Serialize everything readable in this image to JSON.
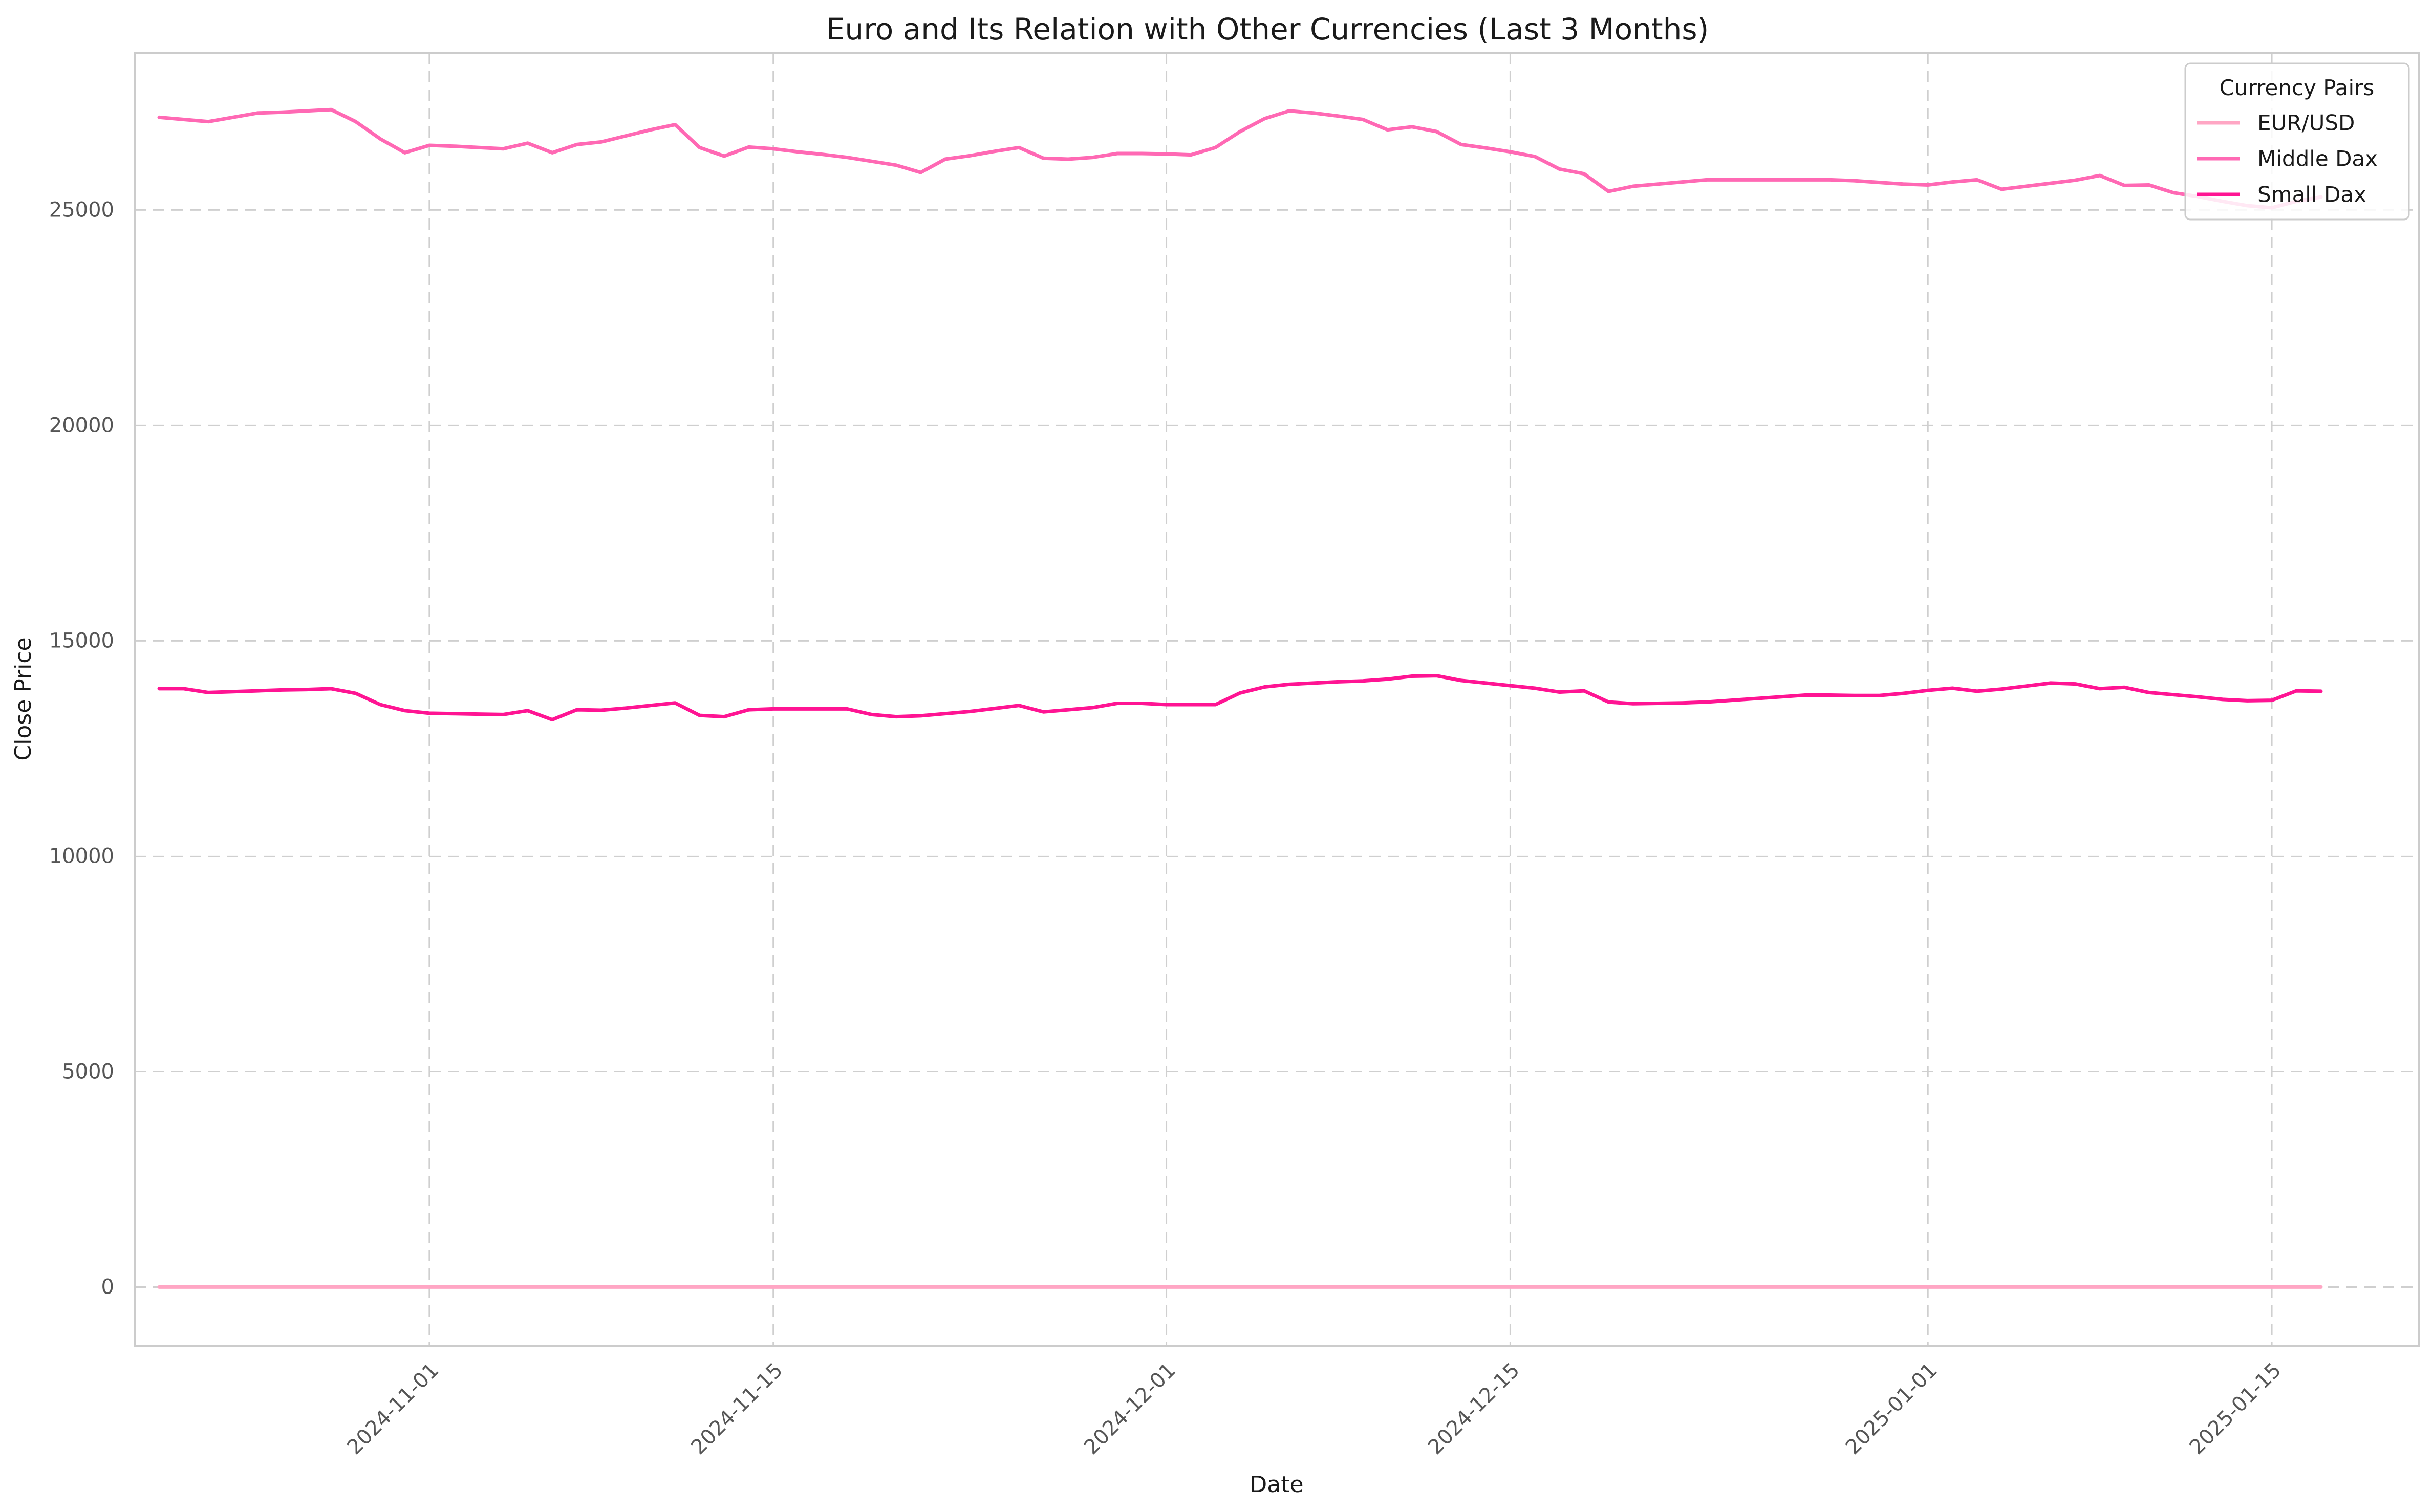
{
  "chart_data": {
    "type": "line",
    "title": "Euro and Its Relation with Other Currencies (Last 3 Months)",
    "xlabel": "Date",
    "ylabel": "Close Price",
    "xlim": [
      "2024-10-20",
      "2025-01-21"
    ],
    "ylim": [
      -1360,
      28650
    ],
    "grid": true,
    "legend": {
      "title": "Currency Pairs",
      "position": "top-right"
    },
    "x_ticks": [
      "2024-11-01",
      "2024-11-15",
      "2024-12-01",
      "2024-12-15",
      "2025-01-01",
      "2025-01-15"
    ],
    "y_ticks": [
      0,
      5000,
      10000,
      15000,
      20000,
      25000
    ],
    "series": [
      {
        "name": "EUR/USD",
        "color": "#ffa6c4",
        "x": [
          "2024-10-21",
          "2025-01-17"
        ],
        "values": [
          1.08,
          1.03
        ]
      },
      {
        "name": "Middle Dax",
        "color": "#ff69b4",
        "x": [
          "2024-10-21",
          "2024-10-22",
          "2024-10-23",
          "2024-10-24",
          "2024-10-25",
          "2024-10-26",
          "2024-10-27",
          "2024-10-28",
          "2024-10-29",
          "2024-10-30",
          "2024-10-31",
          "2024-11-01",
          "2024-11-02",
          "2024-11-03",
          "2024-11-04",
          "2024-11-05",
          "2024-11-06",
          "2024-11-07",
          "2024-11-08",
          "2024-11-09",
          "2024-11-10",
          "2024-11-11",
          "2024-11-12",
          "2024-11-13",
          "2024-11-14",
          "2024-11-15",
          "2024-11-16",
          "2024-11-17",
          "2024-11-18",
          "2024-11-19",
          "2024-11-20",
          "2024-11-21",
          "2024-11-22",
          "2024-11-23",
          "2024-11-24",
          "2024-11-25",
          "2024-11-26",
          "2024-11-27",
          "2024-11-28",
          "2024-11-29",
          "2024-11-30",
          "2024-12-01",
          "2024-12-02",
          "2024-12-03",
          "2024-12-04",
          "2024-12-05",
          "2024-12-06",
          "2024-12-07",
          "2024-12-08",
          "2024-12-09",
          "2024-12-10",
          "2024-12-11",
          "2024-12-12",
          "2024-12-13",
          "2024-12-14",
          "2024-12-15",
          "2024-12-16",
          "2024-12-17",
          "2024-12-18",
          "2024-12-19",
          "2024-12-20",
          "2024-12-21",
          "2024-12-22",
          "2024-12-23",
          "2024-12-24",
          "2024-12-25",
          "2024-12-26",
          "2024-12-27",
          "2024-12-28",
          "2024-12-29",
          "2024-12-30",
          "2024-12-31",
          "2025-01-01",
          "2025-01-02",
          "2025-01-03",
          "2025-01-04",
          "2025-01-05",
          "2025-01-06",
          "2025-01-07",
          "2025-01-08",
          "2025-01-09",
          "2025-01-10",
          "2025-01-11",
          "2025-01-12",
          "2025-01-13",
          "2025-01-14",
          "2025-01-15",
          "2025-01-16",
          "2025-01-17"
        ],
        "values": [
          27150,
          27100,
          27050,
          27150,
          27250,
          27270,
          27300,
          27330,
          27050,
          26650,
          26330,
          26500,
          26480,
          26450,
          26420,
          26550,
          26330,
          26520,
          26580,
          26720,
          26860,
          26980,
          26450,
          26250,
          26460,
          26420,
          26350,
          26290,
          26220,
          26130,
          26040,
          25870,
          26180,
          26260,
          26360,
          26450,
          26200,
          26180,
          26220,
          26310,
          26310,
          26300,
          26280,
          26450,
          26820,
          27120,
          27300,
          27250,
          27180,
          27100,
          26860,
          26930,
          26820,
          26520,
          26440,
          26350,
          26240,
          25950,
          25840,
          25430,
          25550,
          25600,
          25650,
          25700,
          25700,
          25700,
          25700,
          25700,
          25700,
          25680,
          25640,
          25600,
          25580,
          25650,
          25700,
          25480,
          25550,
          25620,
          25690,
          25800,
          25570,
          25580,
          25400,
          25310,
          25200,
          25100,
          25050,
          25200,
          25300
        ]
      },
      {
        "name": "Small Dax",
        "color": "#ff1493",
        "x": [
          "2024-10-21",
          "2024-10-22",
          "2024-10-23",
          "2024-10-24",
          "2024-10-25",
          "2024-10-26",
          "2024-10-27",
          "2024-10-28",
          "2024-10-29",
          "2024-10-30",
          "2024-10-31",
          "2024-11-01",
          "2024-11-02",
          "2024-11-03",
          "2024-11-04",
          "2024-11-05",
          "2024-11-06",
          "2024-11-07",
          "2024-11-08",
          "2024-11-09",
          "2024-11-10",
          "2024-11-11",
          "2024-11-12",
          "2024-11-13",
          "2024-11-14",
          "2024-11-15",
          "2024-11-16",
          "2024-11-17",
          "2024-11-18",
          "2024-11-19",
          "2024-11-20",
          "2024-11-21",
          "2024-11-22",
          "2024-11-23",
          "2024-11-24",
          "2024-11-25",
          "2024-11-26",
          "2024-11-27",
          "2024-11-28",
          "2024-11-29",
          "2024-11-30",
          "2024-12-01",
          "2024-12-02",
          "2024-12-03",
          "2024-12-04",
          "2024-12-05",
          "2024-12-06",
          "2024-12-07",
          "2024-12-08",
          "2024-12-09",
          "2024-12-10",
          "2024-12-11",
          "2024-12-12",
          "2024-12-13",
          "2024-12-14",
          "2024-12-15",
          "2024-12-16",
          "2024-12-17",
          "2024-12-18",
          "2024-12-19",
          "2024-12-20",
          "2024-12-21",
          "2024-12-22",
          "2024-12-23",
          "2024-12-24",
          "2024-12-25",
          "2024-12-26",
          "2024-12-27",
          "2024-12-28",
          "2024-12-29",
          "2024-12-30",
          "2024-12-31",
          "2025-01-01",
          "2025-01-02",
          "2025-01-03",
          "2025-01-04",
          "2025-01-05",
          "2025-01-06",
          "2025-01-07",
          "2025-01-08",
          "2025-01-09",
          "2025-01-10",
          "2025-01-11",
          "2025-01-12",
          "2025-01-13",
          "2025-01-14",
          "2025-01-15",
          "2025-01-16",
          "2025-01-17"
        ],
        "values": [
          13890,
          13890,
          13800,
          13820,
          13840,
          13860,
          13870,
          13890,
          13780,
          13520,
          13380,
          13320,
          13310,
          13300,
          13290,
          13380,
          13170,
          13400,
          13390,
          13440,
          13500,
          13560,
          13270,
          13240,
          13400,
          13420,
          13420,
          13420,
          13420,
          13290,
          13240,
          13260,
          13310,
          13360,
          13430,
          13500,
          13350,
          13400,
          13450,
          13550,
          13550,
          13520,
          13520,
          13520,
          13790,
          13930,
          13990,
          14020,
          14050,
          14070,
          14110,
          14180,
          14190,
          14080,
          14020,
          13960,
          13900,
          13810,
          13840,
          13580,
          13540,
          13550,
          13560,
          13580,
          13620,
          13660,
          13700,
          13740,
          13740,
          13730,
          13730,
          13780,
          13850,
          13900,
          13830,
          13880,
          13950,
          14020,
          14000,
          13890,
          13920,
          13800,
          13750,
          13700,
          13640,
          13610,
          13620,
          13840,
          13830
        ]
      }
    ]
  }
}
